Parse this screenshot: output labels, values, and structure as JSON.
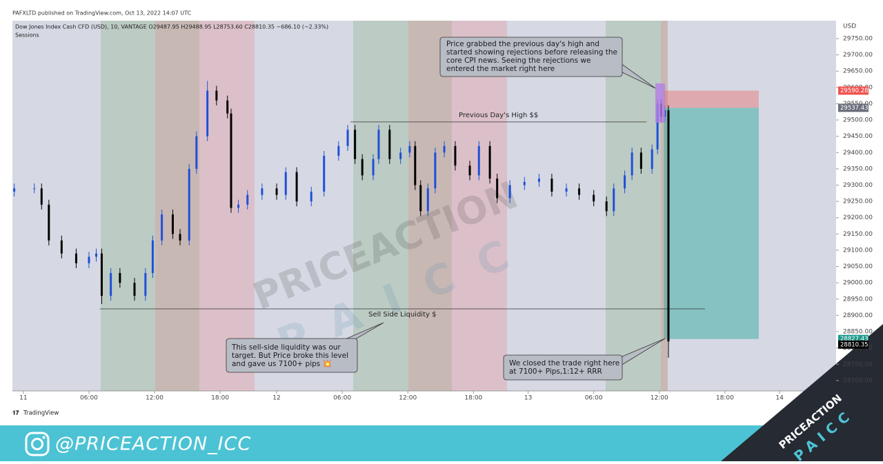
{
  "header": "PAFXLTD published on TradingView.com, Oct 13, 2022 14:07 UTC",
  "chart_data": {
    "type": "candlestick",
    "legend": "Dow Jones Index Cash CFD (USD), 10, VANTAGE  O29487.95 H29488.95 L28753.60 C28810.35 −686.10 (−2.33%)",
    "indicator": "Sessions",
    "currency": "USD",
    "up_color": "#1f4fd8",
    "down_color": "#000000",
    "xlim": [
      -6,
      446
    ],
    "ylim": [
      28668,
      29805
    ],
    "xticks": [
      {
        "value": 0,
        "label": "11"
      },
      {
        "value": 36,
        "label": "06:00"
      },
      {
        "value": 72,
        "label": "12:00"
      },
      {
        "value": 108,
        "label": "18:00"
      },
      {
        "value": 139,
        "label": "12"
      },
      {
        "value": 175,
        "label": "06:00"
      },
      {
        "value": 211,
        "label": "12:00"
      },
      {
        "value": 247,
        "label": "18:00"
      },
      {
        "value": 277,
        "label": "13"
      },
      {
        "value": 313,
        "label": "06:00"
      },
      {
        "value": 349,
        "label": "12:00"
      },
      {
        "value": 385,
        "label": "18:00"
      },
      {
        "value": 415,
        "label": "14"
      }
    ],
    "yticks": [
      {
        "value": 28700,
        "label": "28700.00"
      },
      {
        "value": 28750,
        "label": "28750.00"
      },
      {
        "value": 28800,
        "label": "28800.00"
      },
      {
        "value": 28850,
        "label": "28850.00"
      },
      {
        "value": 28900,
        "label": "28900.00"
      },
      {
        "value": 28950,
        "label": "28950.00"
      },
      {
        "value": 29000,
        "label": "29000.00"
      },
      {
        "value": 29050,
        "label": "29050.00"
      },
      {
        "value": 29100,
        "label": "29100.00"
      },
      {
        "value": 29150,
        "label": "29150.00"
      },
      {
        "value": 29200,
        "label": "29200.00"
      },
      {
        "value": 29250,
        "label": "29250.00"
      },
      {
        "value": 29300,
        "label": "29300.00"
      },
      {
        "value": 29350,
        "label": "29350.00"
      },
      {
        "value": 29400,
        "label": "29400.00"
      },
      {
        "value": 29450,
        "label": "29450.00"
      },
      {
        "value": 29500,
        "label": "29500.00"
      },
      {
        "value": 29550,
        "label": "29550.00"
      },
      {
        "value": 29600,
        "label": "29600.00"
      },
      {
        "value": 29650,
        "label": "29650.00"
      },
      {
        "value": 29700,
        "label": "29700.00"
      },
      {
        "value": 29750,
        "label": "29750.00"
      }
    ],
    "x": [
      -5,
      6,
      10,
      14,
      21,
      29,
      36,
      40,
      43,
      48,
      53,
      61,
      67,
      71,
      76,
      82,
      86,
      91,
      95,
      101,
      106,
      112,
      114,
      118,
      123,
      131,
      139,
      144,
      150,
      158,
      165,
      173,
      178,
      182,
      186,
      192,
      195,
      201,
      207,
      212,
      215,
      218,
      222,
      226,
      231,
      237,
      245,
      250,
      256,
      260,
      267,
      275,
      283,
      290,
      298,
      305,
      313,
      320,
      324,
      330,
      334,
      339,
      345,
      348,
      350,
      352,
      354
    ],
    "open": [
      29280,
      29290,
      29290,
      29240,
      29130,
      29090,
      29060,
      29080,
      29090,
      28960,
      29030,
      29000,
      28960,
      29030,
      29130,
      29210,
      29150,
      29130,
      29350,
      29450,
      29590,
      29560,
      29520,
      29230,
      29240,
      29270,
      29290,
      29270,
      29340,
      29250,
      29280,
      29390,
      29420,
      29470,
      29380,
      29330,
      29380,
      29470,
      29380,
      29400,
      29420,
      29300,
      29220,
      29290,
      29400,
      29420,
      29360,
      29330,
      29420,
      29320,
      29260,
      29300,
      29310,
      29320,
      29280,
      29290,
      29270,
      29250,
      29220,
      29290,
      29330,
      29400,
      29350,
      29410,
      29550,
      29510,
      29530
    ],
    "high": [
      29305,
      29305,
      29305,
      29255,
      29145,
      29105,
      29095,
      29105,
      29105,
      29045,
      29045,
      29015,
      29045,
      29145,
      29225,
      29225,
      29165,
      29365,
      29465,
      29620,
      29605,
      29575,
      29535,
      29255,
      29285,
      29305,
      29305,
      29355,
      29355,
      29295,
      29405,
      29435,
      29485,
      29485,
      29395,
      29395,
      29485,
      29485,
      29415,
      29435,
      29435,
      29315,
      29305,
      29415,
      29435,
      29435,
      29375,
      29435,
      29435,
      29335,
      29315,
      29325,
      29335,
      29335,
      29305,
      29305,
      29285,
      29265,
      29305,
      29345,
      29415,
      29415,
      29425,
      29565,
      29565,
      29545,
      29545
    ],
    "low": [
      29265,
      29275,
      29225,
      29115,
      29075,
      29045,
      29045,
      29065,
      28935,
      28945,
      28985,
      28945,
      28945,
      29015,
      29115,
      29135,
      29115,
      29115,
      29335,
      29435,
      29545,
      29505,
      29215,
      29215,
      29225,
      29255,
      29255,
      29255,
      29235,
      29235,
      29265,
      29375,
      29405,
      29365,
      29315,
      29315,
      29365,
      29365,
      29365,
      29385,
      29285,
      29205,
      29205,
      29275,
      29385,
      29345,
      29315,
      29315,
      29305,
      29245,
      29245,
      29285,
      29295,
      29265,
      29265,
      29255,
      29235,
      29205,
      29205,
      29275,
      29315,
      29335,
      29335,
      29395,
      29495,
      29495,
      28770
    ],
    "close": [
      29290,
      29290,
      29240,
      29130,
      29090,
      29060,
      29080,
      29090,
      28960,
      29030,
      29000,
      28960,
      29030,
      29130,
      29210,
      29150,
      29130,
      29350,
      29450,
      29590,
      29560,
      29520,
      29230,
      29240,
      29270,
      29290,
      29270,
      29340,
      29250,
      29280,
      29390,
      29420,
      29470,
      29380,
      29330,
      29380,
      29470,
      29380,
      29400,
      29420,
      29300,
      29220,
      29290,
      29400,
      29420,
      29360,
      29330,
      29420,
      29320,
      29260,
      29300,
      29310,
      29320,
      29280,
      29290,
      29270,
      29250,
      29220,
      29290,
      29330,
      29400,
      29350,
      29410,
      29550,
      29510,
      29530,
      28820
    ],
    "levels": [
      {
        "label": "Previous Day's High $$",
        "value": 29494,
        "x": [
          179.5,
          342
        ]
      },
      {
        "label": "Sell Side Liquidity $",
        "value": 28920,
        "x": [
          42,
          374
        ]
      }
    ],
    "position": {
      "stop": 29590.28,
      "entry": 29537.43,
      "target": 28827.43,
      "x": [
        351.5,
        403.6
      ]
    },
    "price_tags": [
      {
        "value": 29590.28,
        "color": "#ef5350"
      },
      {
        "value": 29537.43,
        "color": "#6b6f7a"
      },
      {
        "value": 28827.43,
        "color": "#1f9a8c"
      },
      {
        "value": 28810.35,
        "color": "#000000"
      }
    ],
    "annotations": [
      [
        "Price grabbed the previous day's high and",
        "started showing rejections before releasing the",
        "core CPI news. Seeing the rejections we",
        "entered the market right here"
      ],
      [
        "This sell-side liquidity was our",
        "target. But Price broke this level",
        "and gave us 7100+ pips 💥"
      ],
      [
        "We closed the trade right here",
        "at 7100+ Pips,1:12+ RRR"
      ]
    ]
  },
  "watermark": {
    "brand": "PRICEACTION",
    "sub": "PAICC"
  },
  "footer": {
    "platform": "TradingView",
    "handle": "@PRICEACTION_ICC",
    "brand": "PRICEACTION",
    "sub": "PAICC"
  }
}
